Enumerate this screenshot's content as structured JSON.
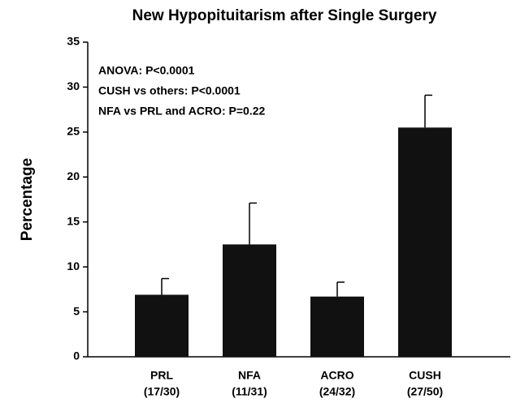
{
  "chart_data": {
    "type": "bar",
    "title": "New Hypopituitarism after Single Surgery",
    "y_label": "Percentage",
    "annotations": [
      "ANOVA:  P<0.0001",
      "CUSH vs others: P<0.0001",
      "NFA vs PRL and ACRO: P=0.22"
    ],
    "categories": [
      "PRL",
      "NFA",
      "ACRO",
      "CUSH"
    ],
    "category_counts": [
      "(17/30)",
      "(11/31)",
      "(24/32)",
      "(27/50)"
    ],
    "values": [
      6.9,
      12.5,
      6.7,
      25.5
    ],
    "errors": [
      1.8,
      4.6,
      1.6,
      3.6
    ],
    "color": "#111111",
    "ylim": [
      0,
      35
    ],
    "yticks": [
      0,
      5,
      10,
      15,
      20,
      25,
      30,
      35
    ]
  }
}
